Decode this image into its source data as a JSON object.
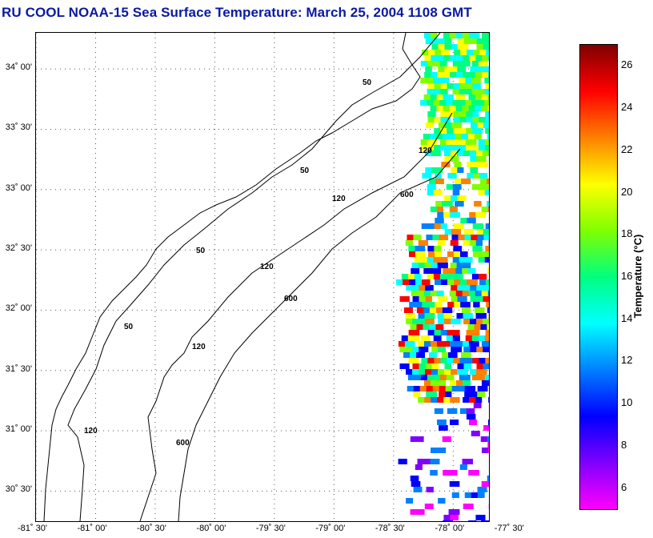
{
  "title": "RU COOL  NOAA-15  Sea Surface Temperature:  March 25, 2004 1108 GMT",
  "map": {
    "lat_range": [
      30.25,
      34.3
    ],
    "lon_range": [
      -81.5,
      -77.7
    ],
    "lat_ticks": [
      {
        "value": 34.0,
        "label": "34˚ 00'"
      },
      {
        "value": 33.5,
        "label": "33˚ 30'"
      },
      {
        "value": 33.0,
        "label": "33˚ 00'"
      },
      {
        "value": 32.5,
        "label": "32˚ 30'"
      },
      {
        "value": 32.0,
        "label": "32˚ 00'"
      },
      {
        "value": 31.5,
        "label": "31˚ 30'"
      },
      {
        "value": 31.0,
        "label": "31˚ 00'"
      },
      {
        "value": 30.5,
        "label": "30˚ 30'"
      }
    ],
    "lon_ticks": [
      {
        "value": -81.5,
        "label": "-81˚ 30'"
      },
      {
        "value": -81.0,
        "label": "-81˚ 00'"
      },
      {
        "value": -80.5,
        "label": "-80˚ 30'"
      },
      {
        "value": -80.0,
        "label": "-80˚ 00'"
      },
      {
        "value": -79.5,
        "label": "-79˚ 30'"
      },
      {
        "value": -79.0,
        "label": "-79˚ 00'"
      },
      {
        "value": -78.5,
        "label": "-78˚ 30'"
      },
      {
        "value": -78.0,
        "label": "-78˚ 00'"
      },
      {
        "value": -77.5,
        "label": "-77˚ 30'"
      }
    ],
    "grid": "dotted",
    "isobath_labels": [
      "50",
      "50",
      "50",
      "50",
      "120",
      "120",
      "120",
      "120",
      "120",
      "600",
      "600",
      "600"
    ]
  },
  "colorbar": {
    "title": "Temperature (°C)",
    "range": [
      5,
      27
    ],
    "ticks": [
      "6",
      "8",
      "10",
      "12",
      "14",
      "16",
      "18",
      "20",
      "22",
      "24",
      "26"
    ],
    "tick_values": [
      6,
      8,
      10,
      12,
      14,
      16,
      18,
      20,
      22,
      24,
      26
    ],
    "colors": [
      "#ff00ff",
      "#8000ff",
      "#0000ff",
      "#0080ff",
      "#00ffff",
      "#00ff80",
      "#80ff00",
      "#ffff00",
      "#ff8000",
      "#ff0000",
      "#800000"
    ]
  }
}
